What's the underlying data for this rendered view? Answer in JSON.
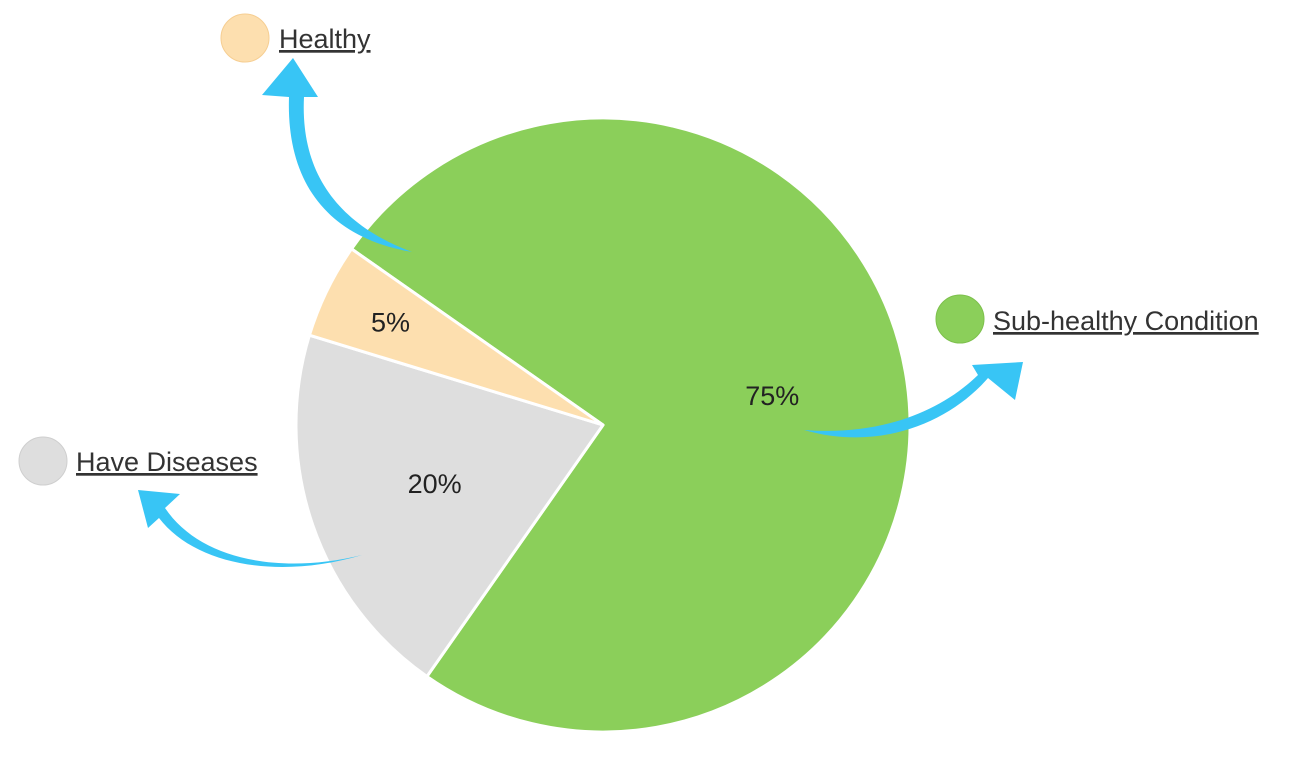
{
  "chart_data": {
    "type": "pie",
    "categories": [
      "Sub-healthy Condition",
      "Have Diseases",
      "Healthy"
    ],
    "values": [
      75,
      20,
      5
    ],
    "value_labels": [
      "75%",
      "20%",
      "5%"
    ],
    "title": "",
    "legend_placement": "callouts around pie",
    "colors": {
      "Sub-healthy Condition": "#8BCF5A",
      "Have Diseases": "#DEDEDE",
      "Healthy": "#FDDFAF",
      "arrow": "#38C5F5"
    }
  }
}
